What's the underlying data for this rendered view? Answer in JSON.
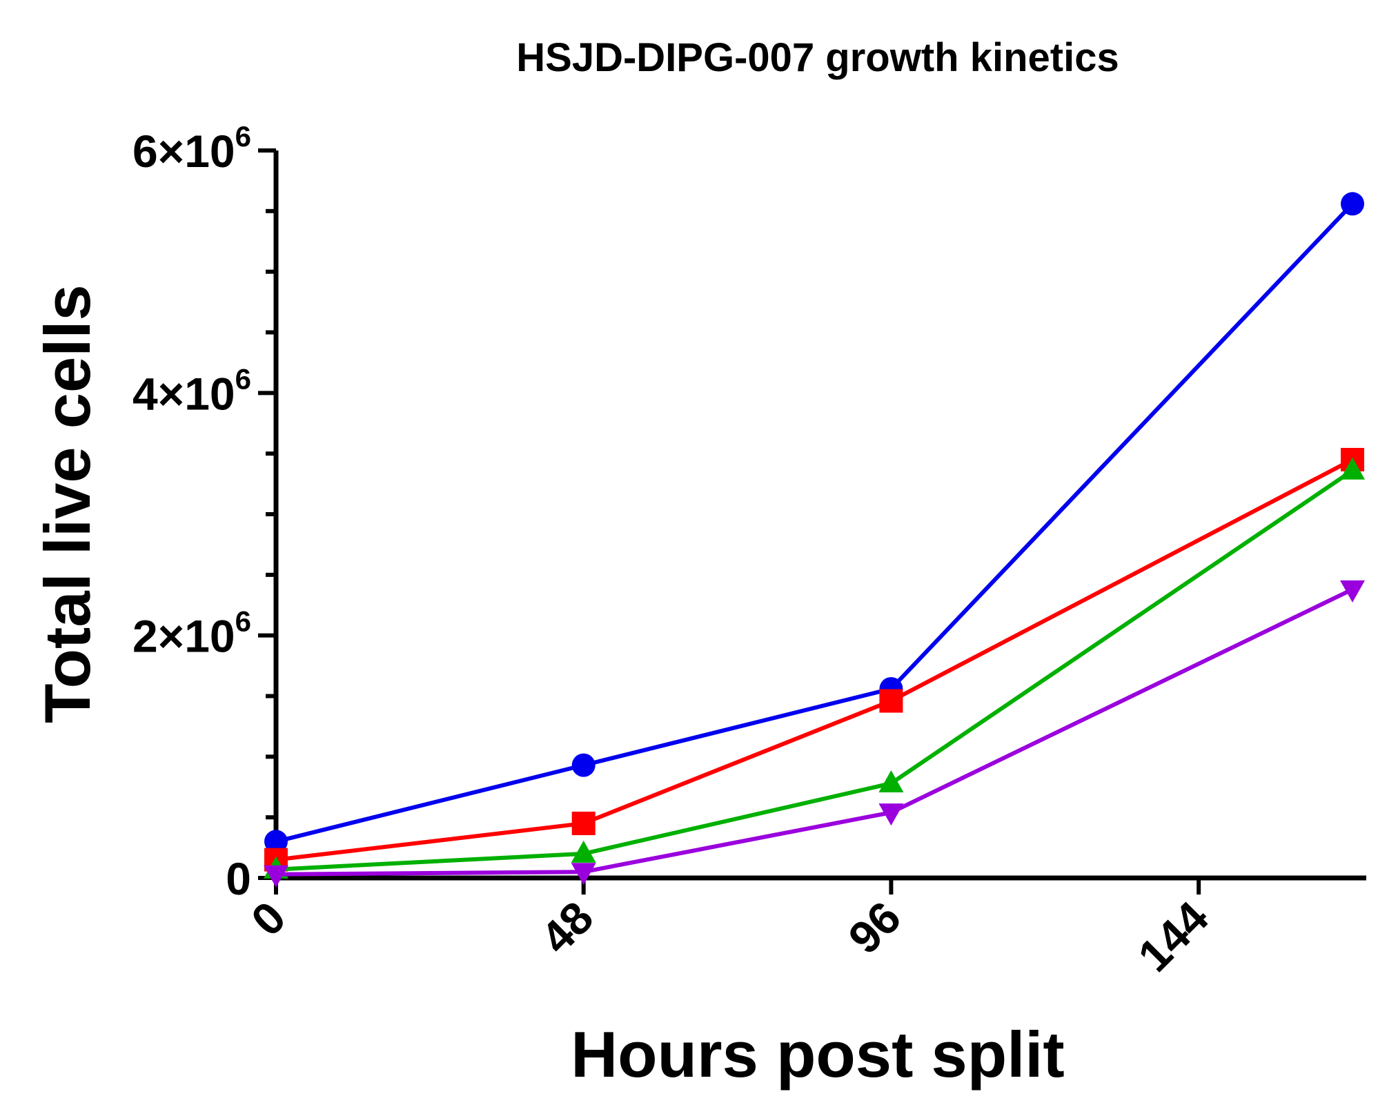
{
  "chart_data": {
    "type": "line",
    "title": "HSJD-DIPG-007 growth kinetics",
    "xlabel": "Hours post split",
    "ylabel": "Total live cells",
    "xlim": [
      0,
      168
    ],
    "ylim": [
      0,
      6000000
    ],
    "x_ticks": [
      {
        "value": 0,
        "label": "0"
      },
      {
        "value": 48,
        "label": "48"
      },
      {
        "value": 96,
        "label": "96"
      },
      {
        "value": 144,
        "label": "144"
      }
    ],
    "y_ticks": [
      {
        "value": 0,
        "mantissa": "0",
        "times": "",
        "base": "",
        "exp": ""
      },
      {
        "value": 2000000,
        "mantissa": "2",
        "times": "×",
        "base": "10",
        "exp": "6"
      },
      {
        "value": 4000000,
        "mantissa": "4",
        "times": "×",
        "base": "10",
        "exp": "6"
      },
      {
        "value": 6000000,
        "mantissa": "6",
        "times": "×",
        "base": "10",
        "exp": "6"
      }
    ],
    "y_minor_step": 500000,
    "grid": false,
    "legend": "none",
    "series": [
      {
        "color": "#0000ee",
        "marker": "circle",
        "x": [
          0,
          48,
          96,
          168
        ],
        "y": [
          300000,
          930000,
          1560000,
          5560000
        ]
      },
      {
        "color": "#ff0000",
        "marker": "square",
        "x": [
          0,
          48,
          96,
          168
        ],
        "y": [
          150000,
          450000,
          1460000,
          3450000
        ]
      },
      {
        "color": "#00b000",
        "marker": "triangle-up",
        "x": [
          0,
          48,
          96,
          168
        ],
        "y": [
          70000,
          200000,
          780000,
          3360000
        ]
      },
      {
        "color": "#9a00dd",
        "marker": "triangle-down",
        "x": [
          0,
          48,
          96,
          168
        ],
        "y": [
          30000,
          50000,
          540000,
          2380000
        ]
      }
    ]
  }
}
